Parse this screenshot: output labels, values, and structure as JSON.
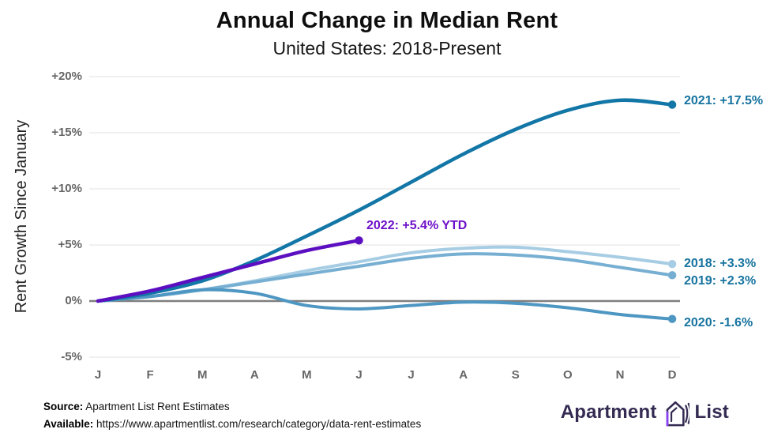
{
  "chart_data": {
    "type": "line",
    "title": "Annual Change in Median Rent",
    "subtitle": "United States: 2018-Present",
    "ylabel": "Rent Growth Since January",
    "xlabel": "",
    "ylim": [
      -5,
      20
    ],
    "grid": true,
    "legend_position": "right-end-labels",
    "months": [
      "J",
      "F",
      "M",
      "A",
      "M",
      "J",
      "J",
      "A",
      "S",
      "O",
      "N",
      "D"
    ],
    "yticks": [
      {
        "value": 20,
        "label": "+20%"
      },
      {
        "value": 15,
        "label": "+15%"
      },
      {
        "value": 10,
        "label": "+10%"
      },
      {
        "value": 5,
        "label": "+5%"
      },
      {
        "value": 0,
        "label": "0%"
      },
      {
        "value": -5,
        "label": "-5%"
      }
    ],
    "series": [
      {
        "name": "2018",
        "color": "#a7cde4",
        "end_label": "2018: +3.3%",
        "values": [
          0,
          0.4,
          1.0,
          1.8,
          2.7,
          3.5,
          4.3,
          4.7,
          4.8,
          4.4,
          3.9,
          3.3
        ]
      },
      {
        "name": "2019",
        "color": "#77afd3",
        "end_label": "2019: +2.3%",
        "values": [
          0,
          0.4,
          1.0,
          1.7,
          2.4,
          3.1,
          3.8,
          4.2,
          4.1,
          3.7,
          3.0,
          2.3
        ]
      },
      {
        "name": "2020",
        "color": "#4f97c3",
        "end_label": "2020: -1.6%",
        "values": [
          0,
          0.4,
          1.0,
          0.7,
          -0.4,
          -0.7,
          -0.4,
          -0.1,
          -0.2,
          -0.6,
          -1.2,
          -1.6
        ]
      },
      {
        "name": "2021",
        "color": "#1276a6",
        "end_label": "2021: +17.5%",
        "values": [
          0,
          0.7,
          1.8,
          3.6,
          5.8,
          8.1,
          10.6,
          13.1,
          15.3,
          17.0,
          17.9,
          17.5
        ]
      },
      {
        "name": "2022",
        "color": "#5c0fc0",
        "label_color": "#6e11c9",
        "end_label": "2022: +5.4% YTD",
        "values": [
          0,
          0.9,
          2.1,
          3.3,
          4.5,
          5.4
        ]
      }
    ],
    "end_label_color": "#16739f",
    "zero_line_color": "#7f7f7f",
    "grid_color": "#ebebeb"
  },
  "footer": {
    "source_label": "Source:",
    "source_text": " Apartment List Rent Estimates",
    "available_label": "Available:",
    "available_text": " https://www.apartmentlist.com/research/category/data-rent-estimates"
  },
  "logo": {
    "word1": "Apartment",
    "word2": "List"
  }
}
